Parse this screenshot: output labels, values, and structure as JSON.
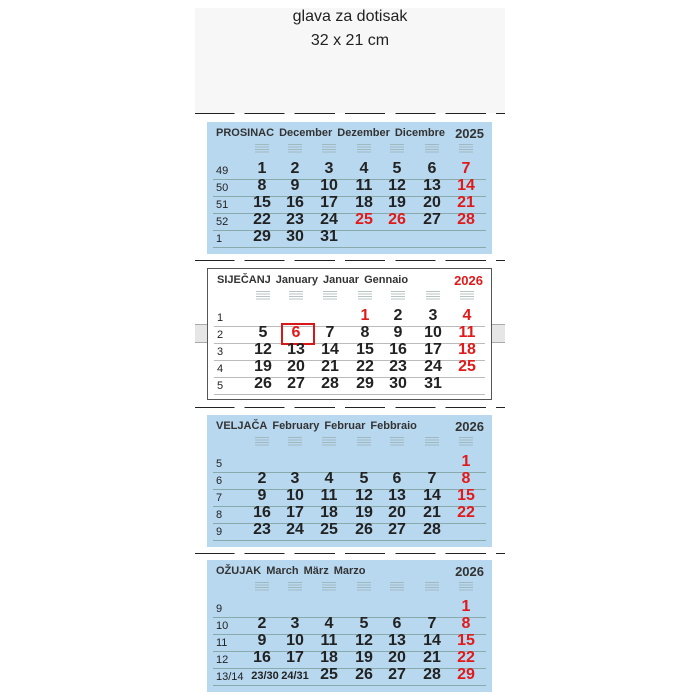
{
  "header": {
    "line1": "glava za dotisak",
    "line2": "32 x 21 cm"
  },
  "colors": {
    "panel": "#b8d8f0",
    "red": "#e01a1a",
    "text": "#222222"
  },
  "months": [
    {
      "names": [
        "PROSINAC",
        "December",
        "Dezember",
        "Dicembre"
      ],
      "year": "2025",
      "year_red": false,
      "white": false,
      "weeks": [
        {
          "wk": "49",
          "days": [
            "1",
            "2",
            "3",
            "4",
            "5",
            "6",
            "7"
          ]
        },
        {
          "wk": "50",
          "days": [
            "8",
            "9",
            "10",
            "11",
            "12",
            "13",
            "14"
          ]
        },
        {
          "wk": "51",
          "days": [
            "15",
            "16",
            "17",
            "18",
            "19",
            "20",
            "21"
          ]
        },
        {
          "wk": "52",
          "days": [
            "22",
            "23",
            "24",
            "25",
            "26",
            "27",
            "28"
          ]
        },
        {
          "wk": "1",
          "days": [
            "29",
            "30",
            "31",
            "",
            "",
            "",
            ""
          ]
        }
      ],
      "red": [
        "7",
        "14",
        "21",
        "25",
        "26",
        "28"
      ]
    },
    {
      "names": [
        "SIJEČANJ",
        "January",
        "Januar",
        "Gennaio"
      ],
      "year": "2026",
      "year_red": true,
      "white": true,
      "today": "6",
      "weeks": [
        {
          "wk": "1",
          "days": [
            "",
            "",
            "",
            "1",
            "2",
            "3",
            "4"
          ]
        },
        {
          "wk": "2",
          "days": [
            "5",
            "6",
            "7",
            "8",
            "9",
            "10",
            "11"
          ]
        },
        {
          "wk": "3",
          "days": [
            "12",
            "13",
            "14",
            "15",
            "16",
            "17",
            "18"
          ]
        },
        {
          "wk": "4",
          "days": [
            "19",
            "20",
            "21",
            "22",
            "23",
            "24",
            "25"
          ]
        },
        {
          "wk": "5",
          "days": [
            "26",
            "27",
            "28",
            "29",
            "30",
            "31",
            ""
          ]
        }
      ],
      "red": [
        "1",
        "4",
        "6",
        "11",
        "18",
        "25"
      ]
    },
    {
      "names": [
        "VELJAČA",
        "February",
        "Februar",
        "Febbraio"
      ],
      "year": "2026",
      "year_red": false,
      "white": false,
      "weeks": [
        {
          "wk": "5",
          "days": [
            "",
            "",
            "",
            "",
            "",
            "",
            "1"
          ]
        },
        {
          "wk": "6",
          "days": [
            "2",
            "3",
            "4",
            "5",
            "6",
            "7",
            "8"
          ]
        },
        {
          "wk": "7",
          "days": [
            "9",
            "10",
            "11",
            "12",
            "13",
            "14",
            "15"
          ]
        },
        {
          "wk": "8",
          "days": [
            "16",
            "17",
            "18",
            "19",
            "20",
            "21",
            "22"
          ]
        },
        {
          "wk": "9",
          "days": [
            "23",
            "24",
            "25",
            "26",
            "27",
            "28",
            ""
          ]
        }
      ],
      "red": [
        "1",
        "8",
        "15",
        "22"
      ]
    },
    {
      "names": [
        "OŽUJAK",
        "March",
        "März",
        "Marzo"
      ],
      "year": "2026",
      "year_red": false,
      "white": false,
      "weeks": [
        {
          "wk": "9",
          "days": [
            "",
            "",
            "",
            "",
            "",
            "",
            "1"
          ]
        },
        {
          "wk": "10",
          "days": [
            "2",
            "3",
            "4",
            "5",
            "6",
            "7",
            "8"
          ]
        },
        {
          "wk": "11",
          "days": [
            "9",
            "10",
            "11",
            "12",
            "13",
            "14",
            "15"
          ]
        },
        {
          "wk": "12",
          "days": [
            "16",
            "17",
            "18",
            "19",
            "20",
            "21",
            "22"
          ]
        },
        {
          "wk": "13/14",
          "days": [
            "23/30",
            "24/31",
            "25",
            "26",
            "27",
            "28",
            "29"
          ]
        }
      ],
      "red": [
        "1",
        "8",
        "15",
        "22",
        "29"
      ]
    }
  ]
}
